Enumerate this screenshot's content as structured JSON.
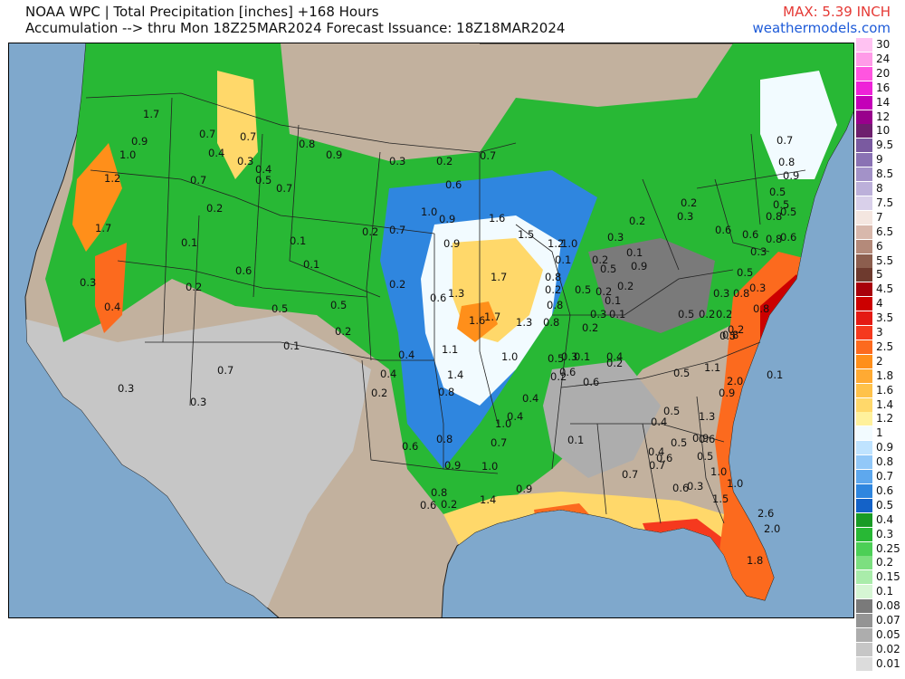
{
  "header": {
    "title_line1": "NOAA WPC | Total Precipitation [inches] +168 Hours",
    "title_line2": "Accumulation --> thru Mon 18Z25MAR2024   Forecast Issuance: 18Z18MAR2024",
    "max_label": "MAX: 5.39 INCH",
    "site": "weathermodels.com"
  },
  "legend": [
    {
      "label": "30",
      "color": "#ffc2f2"
    },
    {
      "label": "24",
      "color": "#ff9be8"
    },
    {
      "label": "20",
      "color": "#ff55e0"
    },
    {
      "label": "16",
      "color": "#ee22d8"
    },
    {
      "label": "14",
      "color": "#c400b8"
    },
    {
      "label": "12",
      "color": "#99008c"
    },
    {
      "label": "10",
      "color": "#6e1f6e"
    },
    {
      "label": "9.5",
      "color": "#7a5aa0"
    },
    {
      "label": "9",
      "color": "#8a72b4"
    },
    {
      "label": "8.5",
      "color": "#a392c8"
    },
    {
      "label": "8",
      "color": "#bcb0da"
    },
    {
      "label": "7.5",
      "color": "#d9d0ea"
    },
    {
      "label": "7",
      "color": "#f4e6e0"
    },
    {
      "label": "6.5",
      "color": "#d8b8ac"
    },
    {
      "label": "6",
      "color": "#b48a7a"
    },
    {
      "label": "5.5",
      "color": "#8c5e4e"
    },
    {
      "label": "5",
      "color": "#6e3a2e"
    },
    {
      "label": "4.5",
      "color": "#a8000a"
    },
    {
      "label": "4",
      "color": "#cc0000"
    },
    {
      "label": "3.5",
      "color": "#e41a14"
    },
    {
      "label": "3",
      "color": "#f5391e"
    },
    {
      "label": "2.5",
      "color": "#fc6a1e"
    },
    {
      "label": "2",
      "color": "#ff8f1a"
    },
    {
      "label": "1.8",
      "color": "#ffaa33"
    },
    {
      "label": "1.6",
      "color": "#ffc24a"
    },
    {
      "label": "1.4",
      "color": "#ffd86a"
    },
    {
      "label": "1.2",
      "color": "#fff19c"
    },
    {
      "label": "1",
      "color": "#f2fbff"
    },
    {
      "label": "0.9",
      "color": "#bfe3ff"
    },
    {
      "label": "0.8",
      "color": "#92c8f8"
    },
    {
      "label": "0.7",
      "color": "#5ea8ee"
    },
    {
      "label": "0.6",
      "color": "#2f86df"
    },
    {
      "label": "0.5",
      "color": "#1462c8"
    },
    {
      "label": "0.4",
      "color": "#199b25"
    },
    {
      "label": "0.3",
      "color": "#28b835"
    },
    {
      "label": "0.25",
      "color": "#4ccf56"
    },
    {
      "label": "0.2",
      "color": "#7ddf80"
    },
    {
      "label": "0.15",
      "color": "#a9ecaa"
    },
    {
      "label": "0.1",
      "color": "#d6f6d4"
    },
    {
      "label": "0.08",
      "color": "#7a7a7a"
    },
    {
      "label": "0.07",
      "color": "#949494"
    },
    {
      "label": "0.05",
      "color": "#adadad"
    },
    {
      "label": "0.02",
      "color": "#c6c6c6"
    },
    {
      "label": "0.01",
      "color": "#dcdcdc"
    }
  ],
  "map_values": [
    {
      "t": "1.7"
    },
    {
      "t": "0.9"
    },
    {
      "t": "1.0"
    },
    {
      "t": "1.2"
    },
    {
      "t": "1.7"
    },
    {
      "t": "0.3"
    },
    {
      "t": "0.4"
    },
    {
      "t": "0.7"
    },
    {
      "t": "0.4"
    },
    {
      "t": "0.7"
    },
    {
      "t": "0.3"
    },
    {
      "t": "0.4"
    },
    {
      "t": "0.5"
    },
    {
      "t": "0.8"
    },
    {
      "t": "0.9"
    },
    {
      "t": "0.7"
    },
    {
      "t": "0.7"
    },
    {
      "t": "0.2"
    },
    {
      "t": "0.1"
    },
    {
      "t": "0.2"
    },
    {
      "t": "0.6"
    },
    {
      "t": "0.1"
    },
    {
      "t": "0.1"
    },
    {
      "t": "0.5"
    },
    {
      "t": "0.5"
    },
    {
      "t": "0.2"
    },
    {
      "t": "0.1"
    },
    {
      "t": "0.7"
    },
    {
      "t": "0.3"
    },
    {
      "t": "0.3"
    },
    {
      "t": "0.3"
    },
    {
      "t": "0.2"
    },
    {
      "t": "0.7"
    },
    {
      "t": "0.6"
    },
    {
      "t": "1.0"
    },
    {
      "t": "0.9"
    },
    {
      "t": "0.7"
    },
    {
      "t": "0.2"
    },
    {
      "t": "0.9"
    },
    {
      "t": "1.6"
    },
    {
      "t": "1.5"
    },
    {
      "t": "1.2"
    },
    {
      "t": "1.0"
    },
    {
      "t": "1.7"
    },
    {
      "t": "1.3"
    },
    {
      "t": "0.6"
    },
    {
      "t": "0.2"
    },
    {
      "t": "1.6"
    },
    {
      "t": "1.7"
    },
    {
      "t": "1.3"
    },
    {
      "t": "0.8"
    },
    {
      "t": "0.8"
    },
    {
      "t": "0.8"
    },
    {
      "t": "0.2"
    },
    {
      "t": "0.1"
    },
    {
      "t": "1.1"
    },
    {
      "t": "1.0"
    },
    {
      "t": "1.4"
    },
    {
      "t": "0.5"
    },
    {
      "t": "0.8"
    },
    {
      "t": "0.2"
    },
    {
      "t": "0.4"
    },
    {
      "t": "0.2"
    },
    {
      "t": "0.6"
    },
    {
      "t": "0.3"
    },
    {
      "t": "0.6"
    },
    {
      "t": "0.4"
    },
    {
      "t": "0.4"
    },
    {
      "t": "0.4"
    },
    {
      "t": "1.0"
    },
    {
      "t": "0.7"
    },
    {
      "t": "1.0"
    },
    {
      "t": "0.9"
    },
    {
      "t": "1.4"
    },
    {
      "t": "0.2"
    },
    {
      "t": "0.8"
    },
    {
      "t": "0.9"
    },
    {
      "t": "0.6"
    },
    {
      "t": "0.8"
    },
    {
      "t": "0.6"
    },
    {
      "t": "0.1"
    },
    {
      "t": "0.7"
    },
    {
      "t": "0.2"
    },
    {
      "t": "0.5"
    },
    {
      "t": "0.2"
    },
    {
      "t": "0.3"
    },
    {
      "t": "0.2"
    },
    {
      "t": "0.1"
    },
    {
      "t": "0.9"
    },
    {
      "t": "0.5"
    },
    {
      "t": "0.2"
    },
    {
      "t": "0.2"
    },
    {
      "t": "0.1"
    },
    {
      "t": "0.1"
    },
    {
      "t": "0.3"
    },
    {
      "t": "0.2"
    },
    {
      "t": "0.1"
    },
    {
      "t": "0.5"
    },
    {
      "t": "0.3"
    },
    {
      "t": "0.2"
    },
    {
      "t": "0.5"
    },
    {
      "t": "0.2"
    },
    {
      "t": "0.8"
    },
    {
      "t": "0.5"
    },
    {
      "t": "0.3"
    },
    {
      "t": "0.8"
    },
    {
      "t": "0.2"
    },
    {
      "t": "0.8"
    },
    {
      "t": "2.0"
    },
    {
      "t": "0.1"
    },
    {
      "t": "0.4"
    },
    {
      "t": "0.5"
    },
    {
      "t": "1.1"
    },
    {
      "t": "0.9"
    },
    {
      "t": "1.3"
    },
    {
      "t": "0.9"
    },
    {
      "t": "0.6"
    },
    {
      "t": "0.5"
    },
    {
      "t": "0.6"
    },
    {
      "t": "0.3"
    },
    {
      "t": "0.4"
    },
    {
      "t": "0.6"
    },
    {
      "t": "0.5"
    },
    {
      "t": "0.4"
    },
    {
      "t": "0.5"
    },
    {
      "t": "0.7"
    },
    {
      "t": "1.0"
    },
    {
      "t": "1.0"
    },
    {
      "t": "1.5"
    },
    {
      "t": "2.6"
    },
    {
      "t": "2.0"
    },
    {
      "t": "1.8"
    },
    {
      "t": "0.7"
    },
    {
      "t": "0.8"
    },
    {
      "t": "0.9"
    },
    {
      "t": "0.5"
    },
    {
      "t": "0.5"
    },
    {
      "t": "0.5"
    },
    {
      "t": "0.8"
    },
    {
      "t": "0.6"
    },
    {
      "t": "0.8"
    },
    {
      "t": "0.6"
    },
    {
      "t": "0.3"
    },
    {
      "t": "0.3"
    },
    {
      "t": "0.6"
    },
    {
      "t": "0.2"
    }
  ]
}
